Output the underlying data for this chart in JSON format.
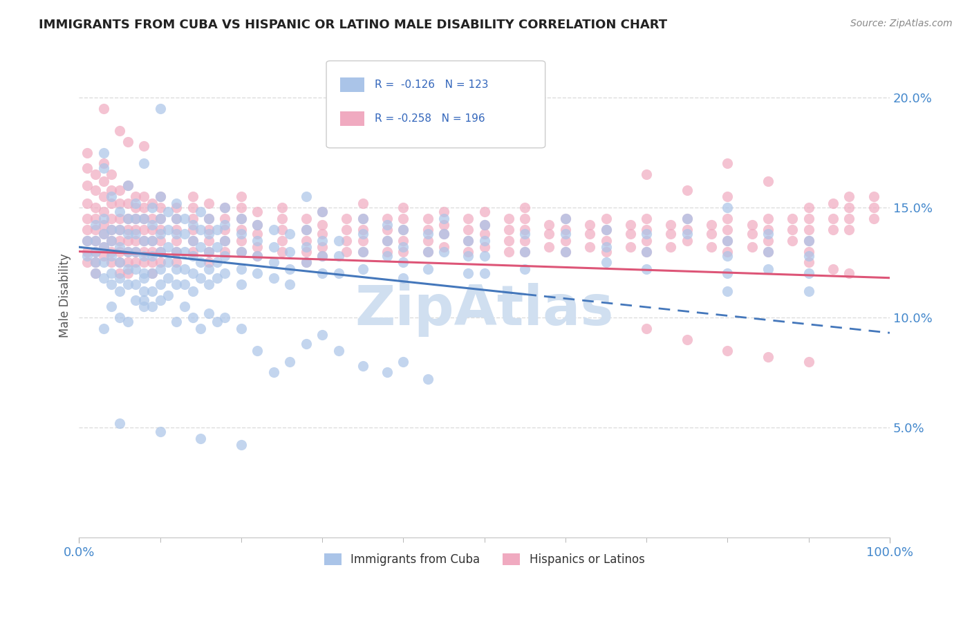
{
  "title": "IMMIGRANTS FROM CUBA VS HISPANIC OR LATINO MALE DISABILITY CORRELATION CHART",
  "source": "Source: ZipAtlas.com",
  "ylabel": "Male Disability",
  "y_ticks_pct": [
    "5.0%",
    "10.0%",
    "15.0%",
    "20.0%"
  ],
  "y_tick_vals": [
    5.0,
    10.0,
    15.0,
    20.0
  ],
  "xlim": [
    0,
    100
  ],
  "ylim": [
    0,
    22
  ],
  "blue_color": "#aac4e8",
  "pink_color": "#f0aac0",
  "blue_line_color": "#4477bb",
  "pink_line_color": "#dd5577",
  "watermark_text": "ZipAtlas",
  "watermark_color": "#d0dff0",
  "background_color": "#ffffff",
  "grid_color": "#dddddd",
  "blue_trend": [
    0,
    13.2,
    100,
    9.3
  ],
  "pink_trend": [
    0,
    13.0,
    100,
    11.8
  ],
  "blue_dashed_start": 55,
  "blue_scatter": [
    [
      1,
      13.5
    ],
    [
      1,
      12.8
    ],
    [
      2,
      14.2
    ],
    [
      2,
      13.5
    ],
    [
      2,
      13.0
    ],
    [
      2,
      12.5
    ],
    [
      2,
      12.0
    ],
    [
      3,
      17.5
    ],
    [
      3,
      16.8
    ],
    [
      3,
      14.5
    ],
    [
      3,
      13.8
    ],
    [
      3,
      13.2
    ],
    [
      3,
      12.5
    ],
    [
      3,
      11.8
    ],
    [
      4,
      15.5
    ],
    [
      4,
      14.0
    ],
    [
      4,
      13.5
    ],
    [
      4,
      12.8
    ],
    [
      4,
      12.0
    ],
    [
      4,
      11.5
    ],
    [
      5,
      14.8
    ],
    [
      5,
      14.0
    ],
    [
      5,
      13.2
    ],
    [
      5,
      12.5
    ],
    [
      5,
      11.8
    ],
    [
      5,
      11.2
    ],
    [
      6,
      16.0
    ],
    [
      6,
      14.5
    ],
    [
      6,
      13.8
    ],
    [
      6,
      13.0
    ],
    [
      6,
      12.2
    ],
    [
      6,
      11.5
    ],
    [
      7,
      15.2
    ],
    [
      7,
      14.5
    ],
    [
      7,
      13.8
    ],
    [
      7,
      13.0
    ],
    [
      7,
      12.2
    ],
    [
      7,
      11.5
    ],
    [
      7,
      10.8
    ],
    [
      8,
      17.0
    ],
    [
      8,
      14.5
    ],
    [
      8,
      13.5
    ],
    [
      8,
      12.8
    ],
    [
      8,
      12.0
    ],
    [
      8,
      11.2
    ],
    [
      8,
      10.5
    ],
    [
      9,
      15.0
    ],
    [
      9,
      14.2
    ],
    [
      9,
      13.5
    ],
    [
      9,
      12.8
    ],
    [
      9,
      12.0
    ],
    [
      9,
      11.2
    ],
    [
      10,
      19.5
    ],
    [
      10,
      15.5
    ],
    [
      10,
      14.5
    ],
    [
      10,
      13.8
    ],
    [
      10,
      13.0
    ],
    [
      10,
      12.2
    ],
    [
      10,
      11.5
    ],
    [
      11,
      14.8
    ],
    [
      11,
      14.0
    ],
    [
      11,
      13.2
    ],
    [
      11,
      12.5
    ],
    [
      11,
      11.8
    ],
    [
      11,
      11.0
    ],
    [
      12,
      15.2
    ],
    [
      12,
      14.5
    ],
    [
      12,
      13.8
    ],
    [
      12,
      13.0
    ],
    [
      12,
      12.2
    ],
    [
      12,
      11.5
    ],
    [
      13,
      14.5
    ],
    [
      13,
      13.8
    ],
    [
      13,
      13.0
    ],
    [
      13,
      12.2
    ],
    [
      13,
      11.5
    ],
    [
      14,
      14.2
    ],
    [
      14,
      13.5
    ],
    [
      14,
      12.8
    ],
    [
      14,
      12.0
    ],
    [
      14,
      11.2
    ],
    [
      15,
      14.8
    ],
    [
      15,
      14.0
    ],
    [
      15,
      13.2
    ],
    [
      15,
      12.5
    ],
    [
      15,
      11.8
    ],
    [
      16,
      14.5
    ],
    [
      16,
      13.8
    ],
    [
      16,
      13.0
    ],
    [
      16,
      12.2
    ],
    [
      16,
      11.5
    ],
    [
      17,
      14.0
    ],
    [
      17,
      13.2
    ],
    [
      17,
      12.5
    ],
    [
      17,
      11.8
    ],
    [
      18,
      15.0
    ],
    [
      18,
      14.2
    ],
    [
      18,
      13.5
    ],
    [
      18,
      12.8
    ],
    [
      18,
      12.0
    ],
    [
      20,
      14.5
    ],
    [
      20,
      13.8
    ],
    [
      20,
      13.0
    ],
    [
      20,
      12.2
    ],
    [
      20,
      11.5
    ],
    [
      22,
      14.2
    ],
    [
      22,
      13.5
    ],
    [
      22,
      12.8
    ],
    [
      22,
      12.0
    ],
    [
      24,
      14.0
    ],
    [
      24,
      13.2
    ],
    [
      24,
      12.5
    ],
    [
      24,
      11.8
    ],
    [
      26,
      13.8
    ],
    [
      26,
      13.0
    ],
    [
      26,
      12.2
    ],
    [
      26,
      11.5
    ],
    [
      28,
      15.5
    ],
    [
      28,
      14.0
    ],
    [
      28,
      13.2
    ],
    [
      28,
      12.5
    ],
    [
      30,
      14.8
    ],
    [
      30,
      13.5
    ],
    [
      30,
      12.8
    ],
    [
      30,
      12.0
    ],
    [
      32,
      13.5
    ],
    [
      32,
      12.8
    ],
    [
      32,
      12.0
    ],
    [
      35,
      14.5
    ],
    [
      35,
      13.8
    ],
    [
      35,
      13.0
    ],
    [
      35,
      12.2
    ],
    [
      38,
      14.2
    ],
    [
      38,
      13.5
    ],
    [
      38,
      12.8
    ],
    [
      40,
      14.0
    ],
    [
      40,
      13.2
    ],
    [
      40,
      12.5
    ],
    [
      40,
      11.8
    ],
    [
      43,
      13.8
    ],
    [
      43,
      13.0
    ],
    [
      43,
      12.2
    ],
    [
      45,
      14.5
    ],
    [
      45,
      13.8
    ],
    [
      45,
      13.0
    ],
    [
      48,
      13.5
    ],
    [
      48,
      12.8
    ],
    [
      48,
      12.0
    ],
    [
      50,
      14.2
    ],
    [
      50,
      13.5
    ],
    [
      50,
      12.8
    ],
    [
      50,
      12.0
    ],
    [
      55,
      13.8
    ],
    [
      55,
      13.0
    ],
    [
      55,
      12.2
    ],
    [
      60,
      14.5
    ],
    [
      60,
      13.8
    ],
    [
      60,
      13.0
    ],
    [
      65,
      14.0
    ],
    [
      65,
      13.2
    ],
    [
      65,
      12.5
    ],
    [
      70,
      13.8
    ],
    [
      70,
      13.0
    ],
    [
      70,
      12.2
    ],
    [
      75,
      14.5
    ],
    [
      75,
      13.8
    ],
    [
      80,
      15.0
    ],
    [
      80,
      13.5
    ],
    [
      80,
      12.8
    ],
    [
      80,
      12.0
    ],
    [
      80,
      11.2
    ],
    [
      85,
      13.8
    ],
    [
      85,
      13.0
    ],
    [
      85,
      12.2
    ],
    [
      90,
      13.5
    ],
    [
      90,
      12.8
    ],
    [
      90,
      12.0
    ],
    [
      90,
      11.2
    ],
    [
      3,
      9.5
    ],
    [
      4,
      10.5
    ],
    [
      5,
      10.0
    ],
    [
      6,
      9.8
    ],
    [
      8,
      11.8
    ],
    [
      8,
      10.8
    ],
    [
      9,
      10.5
    ],
    [
      10,
      10.8
    ],
    [
      12,
      9.8
    ],
    [
      13,
      10.5
    ],
    [
      14,
      10.0
    ],
    [
      15,
      9.5
    ],
    [
      16,
      10.2
    ],
    [
      17,
      9.8
    ],
    [
      18,
      10.0
    ],
    [
      20,
      9.5
    ],
    [
      22,
      8.5
    ],
    [
      24,
      7.5
    ],
    [
      26,
      8.0
    ],
    [
      28,
      8.8
    ],
    [
      30,
      9.2
    ],
    [
      32,
      8.5
    ],
    [
      35,
      7.8
    ],
    [
      38,
      7.5
    ],
    [
      40,
      8.0
    ],
    [
      43,
      7.2
    ],
    [
      5,
      5.2
    ],
    [
      10,
      4.8
    ],
    [
      15,
      4.5
    ],
    [
      20,
      4.2
    ]
  ],
  "pink_scatter": [
    [
      1,
      17.5
    ],
    [
      1,
      16.8
    ],
    [
      1,
      16.0
    ],
    [
      1,
      15.2
    ],
    [
      1,
      14.5
    ],
    [
      1,
      14.0
    ],
    [
      1,
      13.5
    ],
    [
      1,
      13.0
    ],
    [
      1,
      12.5
    ],
    [
      2,
      16.5
    ],
    [
      2,
      15.8
    ],
    [
      2,
      15.0
    ],
    [
      2,
      14.5
    ],
    [
      2,
      14.0
    ],
    [
      2,
      13.5
    ],
    [
      2,
      13.0
    ],
    [
      2,
      12.5
    ],
    [
      2,
      12.0
    ],
    [
      3,
      17.0
    ],
    [
      3,
      16.2
    ],
    [
      3,
      15.5
    ],
    [
      3,
      14.8
    ],
    [
      3,
      14.2
    ],
    [
      3,
      13.8
    ],
    [
      3,
      13.2
    ],
    [
      3,
      12.8
    ],
    [
      4,
      16.5
    ],
    [
      4,
      15.8
    ],
    [
      4,
      15.2
    ],
    [
      4,
      14.5
    ],
    [
      4,
      14.0
    ],
    [
      4,
      13.5
    ],
    [
      4,
      13.0
    ],
    [
      4,
      12.5
    ],
    [
      5,
      15.8
    ],
    [
      5,
      15.2
    ],
    [
      5,
      14.5
    ],
    [
      5,
      14.0
    ],
    [
      5,
      13.5
    ],
    [
      5,
      13.0
    ],
    [
      5,
      12.5
    ],
    [
      5,
      12.0
    ],
    [
      6,
      16.0
    ],
    [
      6,
      15.2
    ],
    [
      6,
      14.5
    ],
    [
      6,
      14.0
    ],
    [
      6,
      13.5
    ],
    [
      6,
      13.0
    ],
    [
      6,
      12.5
    ],
    [
      6,
      12.0
    ],
    [
      7,
      15.5
    ],
    [
      7,
      15.0
    ],
    [
      7,
      14.5
    ],
    [
      7,
      14.0
    ],
    [
      7,
      13.5
    ],
    [
      7,
      13.0
    ],
    [
      7,
      12.5
    ],
    [
      8,
      15.5
    ],
    [
      8,
      15.0
    ],
    [
      8,
      14.5
    ],
    [
      8,
      14.0
    ],
    [
      8,
      13.5
    ],
    [
      8,
      13.0
    ],
    [
      8,
      12.5
    ],
    [
      9,
      15.2
    ],
    [
      9,
      14.5
    ],
    [
      9,
      14.0
    ],
    [
      9,
      13.5
    ],
    [
      9,
      13.0
    ],
    [
      9,
      12.5
    ],
    [
      9,
      12.0
    ],
    [
      10,
      15.5
    ],
    [
      10,
      15.0
    ],
    [
      10,
      14.5
    ],
    [
      10,
      14.0
    ],
    [
      10,
      13.5
    ],
    [
      10,
      13.0
    ],
    [
      10,
      12.5
    ],
    [
      12,
      15.0
    ],
    [
      12,
      14.5
    ],
    [
      12,
      14.0
    ],
    [
      12,
      13.5
    ],
    [
      12,
      13.0
    ],
    [
      12,
      12.5
    ],
    [
      14,
      15.5
    ],
    [
      14,
      15.0
    ],
    [
      14,
      14.5
    ],
    [
      14,
      14.0
    ],
    [
      14,
      13.5
    ],
    [
      14,
      13.0
    ],
    [
      16,
      15.2
    ],
    [
      16,
      14.5
    ],
    [
      16,
      14.0
    ],
    [
      16,
      13.5
    ],
    [
      16,
      13.0
    ],
    [
      16,
      12.5
    ],
    [
      18,
      15.0
    ],
    [
      18,
      14.5
    ],
    [
      18,
      14.0
    ],
    [
      18,
      13.5
    ],
    [
      18,
      13.0
    ],
    [
      20,
      15.5
    ],
    [
      20,
      15.0
    ],
    [
      20,
      14.5
    ],
    [
      20,
      14.0
    ],
    [
      20,
      13.5
    ],
    [
      20,
      13.0
    ],
    [
      22,
      14.8
    ],
    [
      22,
      14.2
    ],
    [
      22,
      13.8
    ],
    [
      22,
      13.2
    ],
    [
      22,
      12.8
    ],
    [
      25,
      15.0
    ],
    [
      25,
      14.5
    ],
    [
      25,
      14.0
    ],
    [
      25,
      13.5
    ],
    [
      25,
      13.0
    ],
    [
      28,
      14.5
    ],
    [
      28,
      14.0
    ],
    [
      28,
      13.5
    ],
    [
      28,
      13.0
    ],
    [
      28,
      12.5
    ],
    [
      30,
      14.8
    ],
    [
      30,
      14.2
    ],
    [
      30,
      13.8
    ],
    [
      30,
      13.2
    ],
    [
      30,
      12.8
    ],
    [
      33,
      14.5
    ],
    [
      33,
      14.0
    ],
    [
      33,
      13.5
    ],
    [
      33,
      13.0
    ],
    [
      35,
      15.2
    ],
    [
      35,
      14.5
    ],
    [
      35,
      14.0
    ],
    [
      35,
      13.5
    ],
    [
      35,
      13.0
    ],
    [
      38,
      14.5
    ],
    [
      38,
      14.0
    ],
    [
      38,
      13.5
    ],
    [
      38,
      13.0
    ],
    [
      40,
      15.0
    ],
    [
      40,
      14.5
    ],
    [
      40,
      14.0
    ],
    [
      40,
      13.5
    ],
    [
      40,
      13.0
    ],
    [
      43,
      14.5
    ],
    [
      43,
      14.0
    ],
    [
      43,
      13.5
    ],
    [
      43,
      13.0
    ],
    [
      45,
      14.8
    ],
    [
      45,
      14.2
    ],
    [
      45,
      13.8
    ],
    [
      45,
      13.2
    ],
    [
      48,
      14.5
    ],
    [
      48,
      14.0
    ],
    [
      48,
      13.5
    ],
    [
      48,
      13.0
    ],
    [
      50,
      14.8
    ],
    [
      50,
      14.2
    ],
    [
      50,
      13.8
    ],
    [
      50,
      13.2
    ],
    [
      53,
      14.5
    ],
    [
      53,
      14.0
    ],
    [
      53,
      13.5
    ],
    [
      53,
      13.0
    ],
    [
      55,
      15.0
    ],
    [
      55,
      14.5
    ],
    [
      55,
      14.0
    ],
    [
      55,
      13.5
    ],
    [
      55,
      13.0
    ],
    [
      58,
      14.2
    ],
    [
      58,
      13.8
    ],
    [
      58,
      13.2
    ],
    [
      60,
      14.5
    ],
    [
      60,
      14.0
    ],
    [
      60,
      13.5
    ],
    [
      60,
      13.0
    ],
    [
      63,
      14.2
    ],
    [
      63,
      13.8
    ],
    [
      63,
      13.2
    ],
    [
      65,
      14.5
    ],
    [
      65,
      14.0
    ],
    [
      65,
      13.5
    ],
    [
      65,
      13.0
    ],
    [
      68,
      14.2
    ],
    [
      68,
      13.8
    ],
    [
      68,
      13.2
    ],
    [
      70,
      14.5
    ],
    [
      70,
      14.0
    ],
    [
      70,
      13.5
    ],
    [
      70,
      13.0
    ],
    [
      73,
      14.2
    ],
    [
      73,
      13.8
    ],
    [
      73,
      13.2
    ],
    [
      75,
      14.5
    ],
    [
      75,
      14.0
    ],
    [
      75,
      13.5
    ],
    [
      78,
      14.2
    ],
    [
      78,
      13.8
    ],
    [
      78,
      13.2
    ],
    [
      80,
      15.5
    ],
    [
      80,
      14.5
    ],
    [
      80,
      14.0
    ],
    [
      80,
      13.5
    ],
    [
      80,
      13.0
    ],
    [
      83,
      14.2
    ],
    [
      83,
      13.8
    ],
    [
      83,
      13.2
    ],
    [
      85,
      14.5
    ],
    [
      85,
      14.0
    ],
    [
      85,
      13.5
    ],
    [
      85,
      13.0
    ],
    [
      88,
      14.5
    ],
    [
      88,
      14.0
    ],
    [
      88,
      13.5
    ],
    [
      90,
      15.0
    ],
    [
      90,
      14.5
    ],
    [
      90,
      14.0
    ],
    [
      90,
      13.5
    ],
    [
      90,
      13.0
    ],
    [
      93,
      15.2
    ],
    [
      93,
      14.5
    ],
    [
      93,
      14.0
    ],
    [
      95,
      15.5
    ],
    [
      95,
      15.0
    ],
    [
      95,
      14.5
    ],
    [
      95,
      14.0
    ],
    [
      98,
      15.5
    ],
    [
      98,
      15.0
    ],
    [
      98,
      14.5
    ],
    [
      5,
      18.5
    ],
    [
      8,
      17.8
    ],
    [
      3,
      19.5
    ],
    [
      6,
      18.0
    ],
    [
      70,
      16.5
    ],
    [
      75,
      15.8
    ],
    [
      80,
      17.0
    ],
    [
      85,
      16.2
    ],
    [
      90,
      12.5
    ],
    [
      93,
      12.2
    ],
    [
      95,
      12.0
    ],
    [
      70,
      9.5
    ],
    [
      75,
      9.0
    ],
    [
      80,
      8.5
    ],
    [
      85,
      8.2
    ],
    [
      90,
      8.0
    ]
  ]
}
